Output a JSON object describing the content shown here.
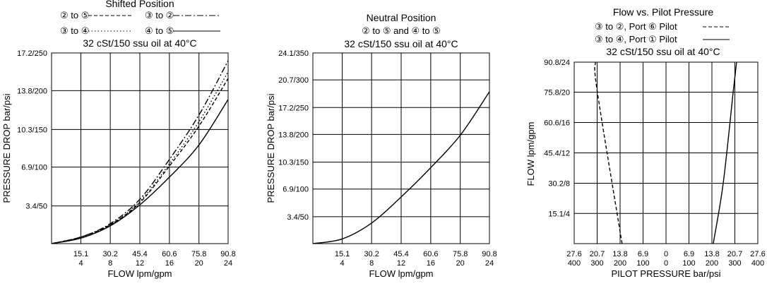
{
  "chart_data": [
    {
      "type": "line",
      "title": "Shifted Position",
      "legend": [
        {
          "text": "② to ⑤",
          "style": "dashed"
        },
        {
          "text": "③ to ②",
          "style": "dashdot"
        },
        {
          "text": "③ to ④",
          "style": "dotted"
        },
        {
          "text": "④ to ⑤",
          "style": "solid"
        }
      ],
      "subtitle": "32 cSt/150 ssu oil at 40°C",
      "xlabel": "FLOW lpm/gpm",
      "ylabel": "PRESSURE DROP bar/psi",
      "xlim": [
        0,
        90.8
      ],
      "ylim": [
        0,
        17.2
      ],
      "xticks": [
        {
          "value": 15.1,
          "top": "15.1",
          "bottom": "4"
        },
        {
          "value": 30.2,
          "top": "30.2",
          "bottom": "8"
        },
        {
          "value": 45.4,
          "top": "45.4",
          "bottom": "12"
        },
        {
          "value": 60.6,
          "top": "60.6",
          "bottom": "16"
        },
        {
          "value": 75.8,
          "top": "75.8",
          "bottom": "20"
        },
        {
          "value": 90.8,
          "top": "90.8",
          "bottom": "24"
        }
      ],
      "yticks": [
        {
          "value": 3.4,
          "label": "3.4/50"
        },
        {
          "value": 6.9,
          "label": "6.9/100"
        },
        {
          "value": 10.3,
          "label": "10.3/150"
        },
        {
          "value": 13.8,
          "label": "13.8/200"
        },
        {
          "value": 17.2,
          "label": "17.2/250"
        }
      ],
      "grid": true,
      "series": [
        {
          "name": "② to ⑤",
          "style": "dashed",
          "x": [
            0,
            15.1,
            30.2,
            45.4,
            60.6,
            75.8,
            90.8
          ],
          "y": [
            0,
            0.6,
            1.7,
            3.7,
            7.0,
            10.6,
            14.9
          ]
        },
        {
          "name": "③ to ②",
          "style": "dashdot",
          "x": [
            0,
            15.1,
            30.2,
            45.4,
            60.6,
            75.8,
            90.8
          ],
          "y": [
            0,
            0.6,
            1.8,
            4.0,
            7.6,
            11.6,
            16.5
          ]
        },
        {
          "name": "③ to ④",
          "style": "dotted",
          "x": [
            0,
            15.1,
            30.2,
            45.4,
            60.6,
            75.8,
            90.8
          ],
          "y": [
            0,
            0.6,
            1.7,
            3.8,
            7.2,
            11.0,
            15.5
          ]
        },
        {
          "name": "④ to ⑤",
          "style": "solid",
          "x": [
            0,
            15.1,
            30.2,
            45.4,
            60.6,
            75.8,
            90.8
          ],
          "y": [
            0,
            0.5,
            1.6,
            3.5,
            6.0,
            8.9,
            13.0
          ]
        }
      ]
    },
    {
      "type": "line",
      "title": "Neutral Position",
      "legend": [
        {
          "text": "② to ⑤ and ④ to ⑤",
          "style": "none"
        }
      ],
      "subtitle": "32 cSt/150 ssu oil at 40°C",
      "xlabel": "FLOW lpm/gpm",
      "ylabel": "PRESSURE DROP bar/psi",
      "xlim": [
        0,
        90.8
      ],
      "ylim": [
        0,
        24.1
      ],
      "xticks": [
        {
          "value": 15.1,
          "top": "15.1",
          "bottom": "4"
        },
        {
          "value": 30.2,
          "top": "30.2",
          "bottom": "8"
        },
        {
          "value": 45.4,
          "top": "45.4",
          "bottom": "12"
        },
        {
          "value": 60.6,
          "top": "60.6",
          "bottom": "16"
        },
        {
          "value": 75.8,
          "top": "75.8",
          "bottom": "20"
        },
        {
          "value": 90.8,
          "top": "90.8",
          "bottom": "24"
        }
      ],
      "yticks": [
        {
          "value": 3.4,
          "label": "3.4/50"
        },
        {
          "value": 6.9,
          "label": "6.9/100"
        },
        {
          "value": 10.3,
          "label": "10.3/150"
        },
        {
          "value": 13.8,
          "label": "13.8/200"
        },
        {
          "value": 17.2,
          "label": "17.2/250"
        },
        {
          "value": 20.7,
          "label": "20.7/300"
        },
        {
          "value": 24.1,
          "label": "24.1/350"
        }
      ],
      "grid": true,
      "series": [
        {
          "name": "② to ⑤ and ④ to ⑤",
          "style": "solid",
          "x": [
            0,
            15.1,
            30.2,
            45.4,
            60.6,
            75.8,
            90.8
          ],
          "y": [
            0,
            0.6,
            2.6,
            5.9,
            9.6,
            13.7,
            19.2
          ]
        }
      ]
    },
    {
      "type": "line",
      "title": "Flow vs. Pilot Pressure",
      "legend": [
        {
          "text": "③ to ②, Port ⑥ Pilot",
          "style": "dashed"
        },
        {
          "text": "③ to ④, Port ① Pilot",
          "style": "solid"
        }
      ],
      "subtitle": "32 cSt/150 ssu oil at 40°C",
      "xlabel": "PILOT PRESSURE bar/psi",
      "ylabel": "FLOW lpm/gpm",
      "xlim": [
        -27.6,
        27.6
      ],
      "ylim": [
        0,
        90.8
      ],
      "xticks": [
        {
          "value": -27.6,
          "top": "27.6",
          "bottom": "400"
        },
        {
          "value": -20.7,
          "top": "20.7",
          "bottom": "300"
        },
        {
          "value": -13.8,
          "top": "13.8",
          "bottom": "200"
        },
        {
          "value": -6.9,
          "top": "6.9",
          "bottom": "100"
        },
        {
          "value": 0,
          "top": "0",
          "bottom": "0"
        },
        {
          "value": 6.9,
          "top": "6.9",
          "bottom": "100"
        },
        {
          "value": 13.8,
          "top": "13.8",
          "bottom": "200"
        },
        {
          "value": 20.7,
          "top": "20.7",
          "bottom": "300"
        },
        {
          "value": 27.6,
          "top": "27.6",
          "bottom": "400"
        }
      ],
      "yticks": [
        {
          "value": 15.1,
          "label": "15.1/4"
        },
        {
          "value": 30.2,
          "label": "30.2/8"
        },
        {
          "value": 45.4,
          "label": "45.4/12"
        },
        {
          "value": 60.6,
          "label": "60.6/16"
        },
        {
          "value": 75.8,
          "label": "75.8/20"
        },
        {
          "value": 90.8,
          "label": "90.8/24"
        }
      ],
      "grid": true,
      "series": [
        {
          "name": "③ to ②, Port ⑥ Pilot",
          "style": "dashed",
          "x": [
            -13.2,
            -20.7,
            -21.2
          ],
          "y": [
            0,
            76.5,
            90.8
          ]
        },
        {
          "name": "③ to ④, Port ① Pilot",
          "style": "solid",
          "x": [
            14.2,
            17.2,
            20.2,
            21.2
          ],
          "y": [
            0,
            30.2,
            75.8,
            90.8
          ]
        }
      ]
    }
  ]
}
